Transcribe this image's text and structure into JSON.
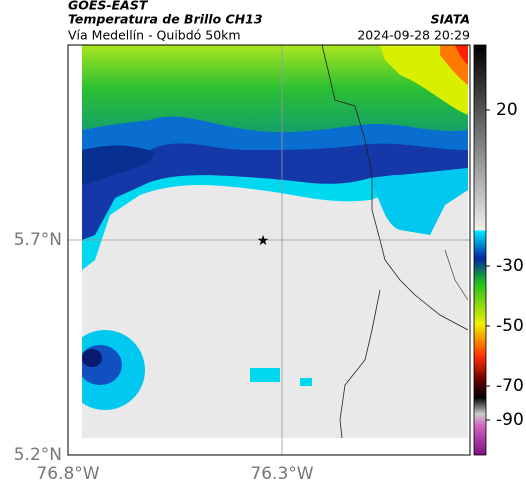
{
  "header": {
    "title": "GOES-EAST",
    "subtitle": "Temperatura de Brillo CH13",
    "route": "Vía Medellín - Quibdó 50km",
    "source": "SIATA",
    "datetime": "2024-09-28 20:29"
  },
  "axes": {
    "y_ticks": [
      "5.7°N",
      "5.2°N"
    ],
    "x_ticks": [
      "76.8°W",
      "76.3°W"
    ]
  },
  "colorbar": {
    "ticks": [
      20,
      -30,
      -50,
      -70,
      -90
    ]
  }
}
